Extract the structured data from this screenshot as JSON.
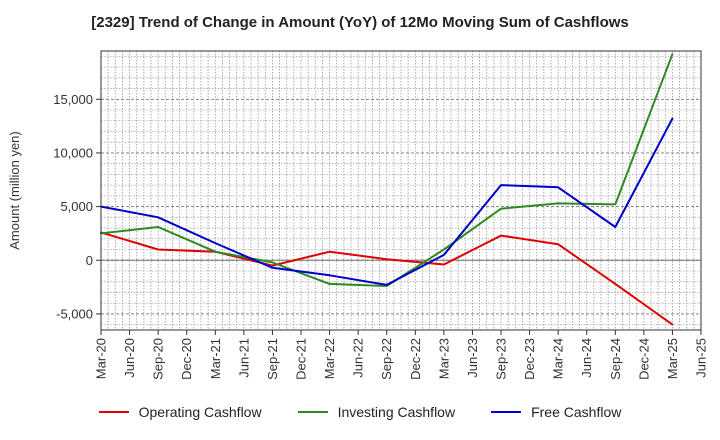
{
  "chart_data": {
    "type": "line",
    "title": "[2329]  Trend of Change in Amount (YoY) of 12Mo Moving Sum of Cashflows",
    "xlabel": "",
    "ylabel": "Amount (million yen)",
    "ylim": [
      -6500,
      19500
    ],
    "yticks": [
      -5000,
      0,
      5000,
      10000,
      15000
    ],
    "ytick_labels": [
      "-5,000",
      "0",
      "5,000",
      "10,000",
      "15,000"
    ],
    "grid": true,
    "legend_position": "bottom",
    "categories": [
      "Mar-20",
      "Jun-20",
      "Sep-20",
      "Dec-20",
      "Mar-21",
      "Jun-21",
      "Sep-21",
      "Dec-21",
      "Mar-22",
      "Jun-22",
      "Sep-22",
      "Dec-22",
      "Mar-23",
      "Jun-23",
      "Sep-23",
      "Dec-23",
      "Mar-24",
      "Jun-24",
      "Sep-24",
      "Dec-24",
      "Mar-25",
      "Jun-25"
    ],
    "series": [
      {
        "name": "Operating Cashflow",
        "color": "#e00000",
        "values": [
          2600,
          null,
          1000,
          null,
          800,
          null,
          -500,
          null,
          800,
          null,
          100,
          null,
          -400,
          null,
          2300,
          null,
          1500,
          null,
          -2200,
          null,
          -6000,
          null
        ]
      },
      {
        "name": "Investing Cashflow",
        "color": "#2e8b22",
        "values": [
          2500,
          null,
          3100,
          null,
          800,
          null,
          -200,
          null,
          -2200,
          null,
          -2400,
          null,
          1000,
          null,
          4800,
          null,
          5300,
          null,
          5200,
          null,
          19200,
          null
        ]
      },
      {
        "name": "Free Cashflow",
        "color": "#0000cc",
        "values": [
          5000,
          null,
          4000,
          null,
          1600,
          null,
          -700,
          null,
          -1400,
          null,
          -2300,
          null,
          500,
          null,
          7000,
          null,
          6800,
          null,
          3100,
          null,
          13200,
          null
        ]
      }
    ]
  }
}
